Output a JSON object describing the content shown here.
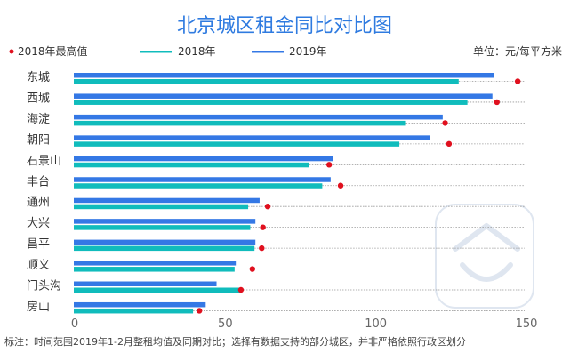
{
  "chart_data": {
    "type": "bar",
    "orientation": "horizontal",
    "title": "北京城区租金同比对比图",
    "unit_label": "单位：元/每平方米",
    "footnote": "标注：时间范围2019年1-2月整租均值及同期对比；选择有数据支持的部分城区，并非严格依照行政区划分",
    "categories": [
      "东城",
      "西城",
      "海淀",
      "朝阳",
      "石景山",
      "丰台",
      "通州",
      "大兴",
      "昌平",
      "顺义",
      "门头沟",
      "房山"
    ],
    "series": [
      {
        "name": "2019年",
        "color": "#3478e5",
        "values": [
          139.3,
          138.7,
          122.2,
          117.9,
          85.8,
          85.0,
          61.4,
          60.0,
          60.0,
          53.5,
          47.1,
          43.5
        ]
      },
      {
        "name": "2018年",
        "color": "#10bcbc",
        "values": [
          127.5,
          130.4,
          110.0,
          107.8,
          77.9,
          82.2,
          57.6,
          58.3,
          59.7,
          53.1,
          55.2,
          39.3
        ]
      },
      {
        "name": "2018年最高值",
        "color": "#e0101e",
        "marker": "dot",
        "values": [
          147.1,
          140.2,
          123.0,
          124.3,
          84.5,
          88.3,
          64.1,
          62.5,
          62.1,
          59.0,
          55.2,
          41.4
        ]
      }
    ],
    "legend_order": [
      "2018年最高值",
      "2018年",
      "2019年"
    ],
    "legend_position": "top",
    "xlim": [
      0,
      150
    ],
    "xticks": [
      "0",
      "50",
      "100",
      "150"
    ],
    "grid": false
  }
}
